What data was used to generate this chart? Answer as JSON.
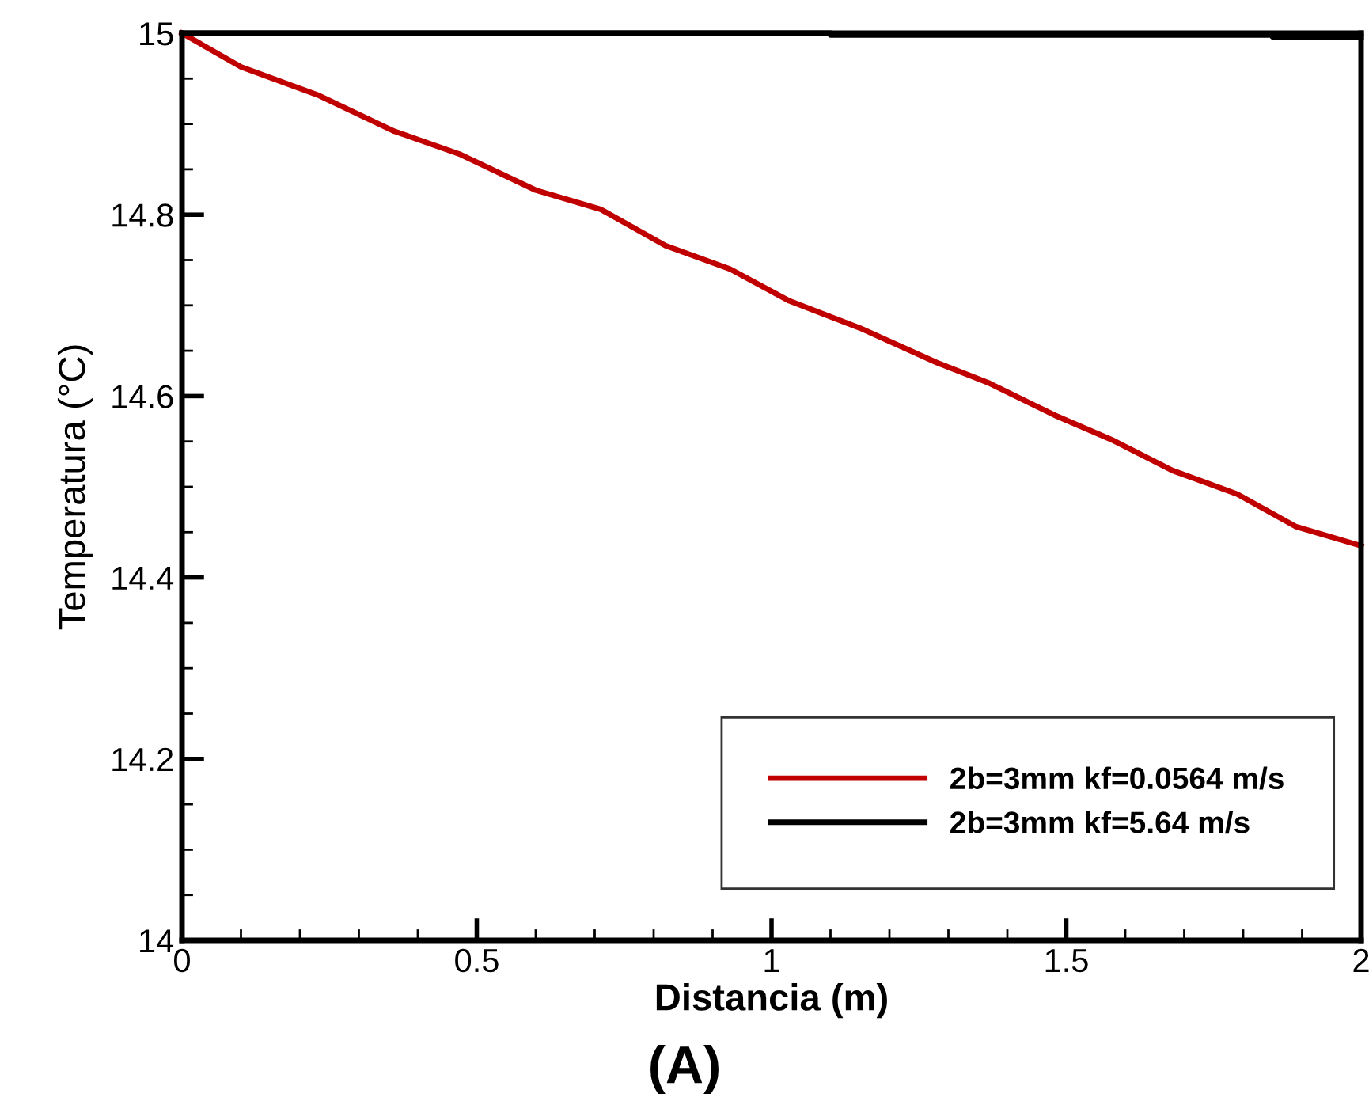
{
  "chart_data": {
    "type": "line",
    "xlabel": "Distancia (m)",
    "ylabel": "Temperatura (°C)",
    "annotations": [
      "(A)"
    ],
    "xlim": [
      0,
      2
    ],
    "xticks": [
      0,
      0.5,
      1,
      1.5,
      2
    ],
    "ylim": [
      14,
      15
    ],
    "yticks": [
      14,
      14.2,
      14.4,
      14.6,
      14.8,
      15
    ],
    "legend": "bottom right",
    "grid": false,
    "marker": "none",
    "line_style": "solid",
    "series": [
      {
        "name": "2b=3mm kf=0.0564 m/s",
        "color": "#c00000",
        "x": [
          0,
          0.1,
          0.23,
          0.36,
          0.47,
          0.6,
          0.71,
          0.82,
          0.93,
          1.03,
          1.15,
          1.28,
          1.37,
          1.48,
          1.58,
          1.68,
          1.79,
          1.89,
          2
        ],
        "values": [
          15,
          14.963,
          14.932,
          14.892,
          14.867,
          14.827,
          14.806,
          14.766,
          14.74,
          14.705,
          14.675,
          14.637,
          14.614,
          14.579,
          14.551,
          14.518,
          14.492,
          14.456,
          14.435
        ]
      },
      {
        "name": "2b=3mm kf=5.64 m/s",
        "color": "#000000",
        "x": [
          0,
          1.1,
          1.1,
          1.85,
          1.85,
          2
        ],
        "values": [
          15,
          15,
          14.998,
          14.998,
          14.996,
          14.996
        ]
      }
    ]
  }
}
